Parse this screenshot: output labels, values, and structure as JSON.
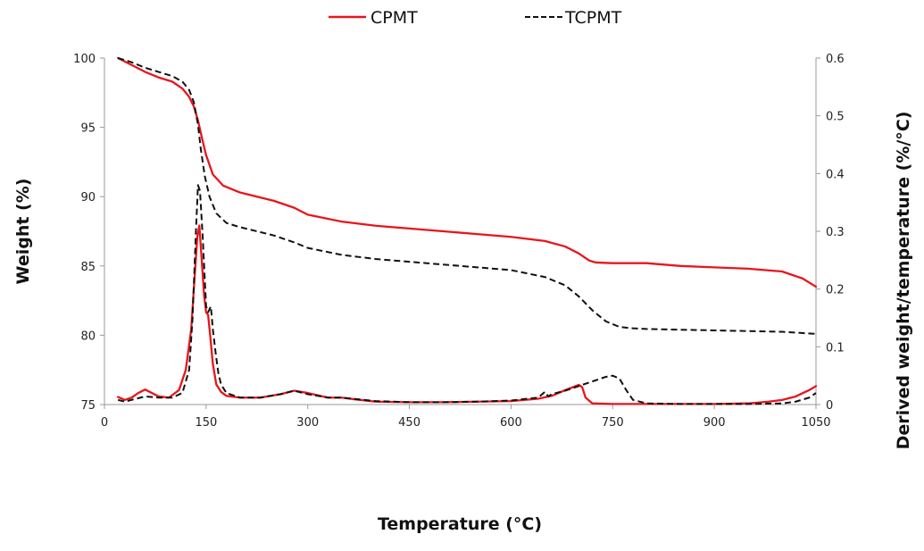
{
  "chart_data": {
    "type": "line",
    "title": "",
    "xlabel": "Temperature (°C)",
    "ylabel": "Weight (%)",
    "y2label": "Derived weight/temperature (%/°C)",
    "xlim": [
      0,
      1050
    ],
    "ylim": [
      75,
      100
    ],
    "y2lim": [
      0,
      0.6
    ],
    "xticks": [
      0,
      150,
      300,
      450,
      600,
      750,
      900,
      1050
    ],
    "yticks": [
      75,
      80,
      85,
      90,
      95,
      100
    ],
    "y2ticks": [
      0,
      0.1,
      0.2,
      0.3,
      0.4,
      0.5,
      0.6
    ],
    "y2tick_labels": [
      "0",
      "0.1",
      "0.2",
      "0.3",
      "0.4",
      "0.5",
      "0.6"
    ],
    "grid": false,
    "legend_position": "top-center",
    "colors": {
      "CPMT": "#e8151b",
      "TCPMT": "#111111"
    },
    "series": [
      {
        "name": "CPMT",
        "kind": "weight",
        "axis": "left",
        "dash": "solid",
        "x": [
          20,
          40,
          60,
          80,
          100,
          115,
          125,
          132,
          138,
          145,
          150,
          160,
          175,
          200,
          250,
          280,
          300,
          350,
          400,
          450,
          500,
          550,
          600,
          650,
          680,
          700,
          715,
          725,
          750,
          800,
          850,
          900,
          950,
          1000,
          1030,
          1050
        ],
        "y": [
          100,
          99.5,
          99.0,
          98.6,
          98.3,
          97.8,
          97.2,
          96.5,
          95.5,
          94.0,
          93.0,
          91.6,
          90.8,
          90.3,
          89.7,
          89.2,
          88.7,
          88.2,
          87.9,
          87.7,
          87.5,
          87.3,
          87.1,
          86.8,
          86.4,
          85.9,
          85.4,
          85.25,
          85.2,
          85.2,
          85.0,
          84.9,
          84.8,
          84.6,
          84.1,
          83.5
        ]
      },
      {
        "name": "TCPMT",
        "kind": "weight",
        "axis": "left",
        "dash": "dashed",
        "x": [
          20,
          40,
          60,
          80,
          100,
          115,
          125,
          132,
          138,
          142,
          148,
          155,
          165,
          180,
          200,
          250,
          280,
          300,
          350,
          400,
          450,
          500,
          550,
          600,
          650,
          680,
          700,
          720,
          740,
          760,
          780,
          800,
          850,
          900,
          950,
          1000,
          1050
        ],
        "y": [
          100,
          99.7,
          99.3,
          99.0,
          98.7,
          98.3,
          97.7,
          96.8,
          95.2,
          93.5,
          91.5,
          90.0,
          88.8,
          88.1,
          87.8,
          87.2,
          86.7,
          86.3,
          85.8,
          85.5,
          85.3,
          85.1,
          84.9,
          84.7,
          84.2,
          83.6,
          82.8,
          81.8,
          81.0,
          80.6,
          80.5,
          80.45,
          80.4,
          80.35,
          80.3,
          80.25,
          80.1
        ]
      },
      {
        "name": "CPMT",
        "kind": "derivative",
        "axis": "right",
        "dash": "solid",
        "x": [
          20,
          30,
          40,
          50,
          60,
          70,
          80,
          95,
          110,
          120,
          128,
          133,
          137,
          140,
          143,
          147,
          150,
          153,
          156,
          160,
          165,
          172,
          180,
          200,
          230,
          260,
          280,
          300,
          330,
          350,
          370,
          400,
          450,
          500,
          550,
          600,
          640,
          660,
          680,
          700,
          705,
          710,
          720,
          750,
          800,
          850,
          900,
          950,
          980,
          1000,
          1020,
          1040,
          1050
        ],
        "y": [
          0.013,
          0.008,
          0.012,
          0.02,
          0.026,
          0.02,
          0.014,
          0.012,
          0.025,
          0.06,
          0.13,
          0.22,
          0.29,
          0.31,
          0.26,
          0.19,
          0.16,
          0.155,
          0.12,
          0.07,
          0.035,
          0.022,
          0.015,
          0.012,
          0.012,
          0.018,
          0.024,
          0.02,
          0.012,
          0.012,
          0.009,
          0.005,
          0.004,
          0.004,
          0.005,
          0.006,
          0.01,
          0.015,
          0.025,
          0.034,
          0.03,
          0.012,
          0.002,
          0.001,
          0.001,
          0.001,
          0.001,
          0.002,
          0.005,
          0.008,
          0.014,
          0.025,
          0.032
        ]
      },
      {
        "name": "TCPMT",
        "kind": "derivative",
        "axis": "right",
        "dash": "dashed",
        "x": [
          20,
          30,
          40,
          60,
          80,
          100,
          115,
          125,
          130,
          135,
          138,
          141,
          145,
          150,
          153,
          157,
          160,
          164,
          168,
          172,
          180,
          200,
          230,
          260,
          280,
          300,
          330,
          350,
          400,
          450,
          500,
          550,
          600,
          640,
          650,
          655,
          660,
          680,
          700,
          720,
          740,
          750,
          760,
          770,
          780,
          800,
          850,
          900,
          950,
          1000,
          1020,
          1040,
          1050
        ],
        "y": [
          0.008,
          0.005,
          0.008,
          0.014,
          0.012,
          0.012,
          0.02,
          0.06,
          0.15,
          0.3,
          0.38,
          0.37,
          0.29,
          0.17,
          0.16,
          0.17,
          0.13,
          0.09,
          0.055,
          0.035,
          0.02,
          0.012,
          0.012,
          0.018,
          0.024,
          0.018,
          0.012,
          0.012,
          0.006,
          0.004,
          0.004,
          0.005,
          0.007,
          0.012,
          0.022,
          0.014,
          0.018,
          0.024,
          0.032,
          0.04,
          0.048,
          0.05,
          0.045,
          0.025,
          0.008,
          0.002,
          0.001,
          0.001,
          0.001,
          0.002,
          0.005,
          0.012,
          0.02
        ]
      }
    ]
  }
}
